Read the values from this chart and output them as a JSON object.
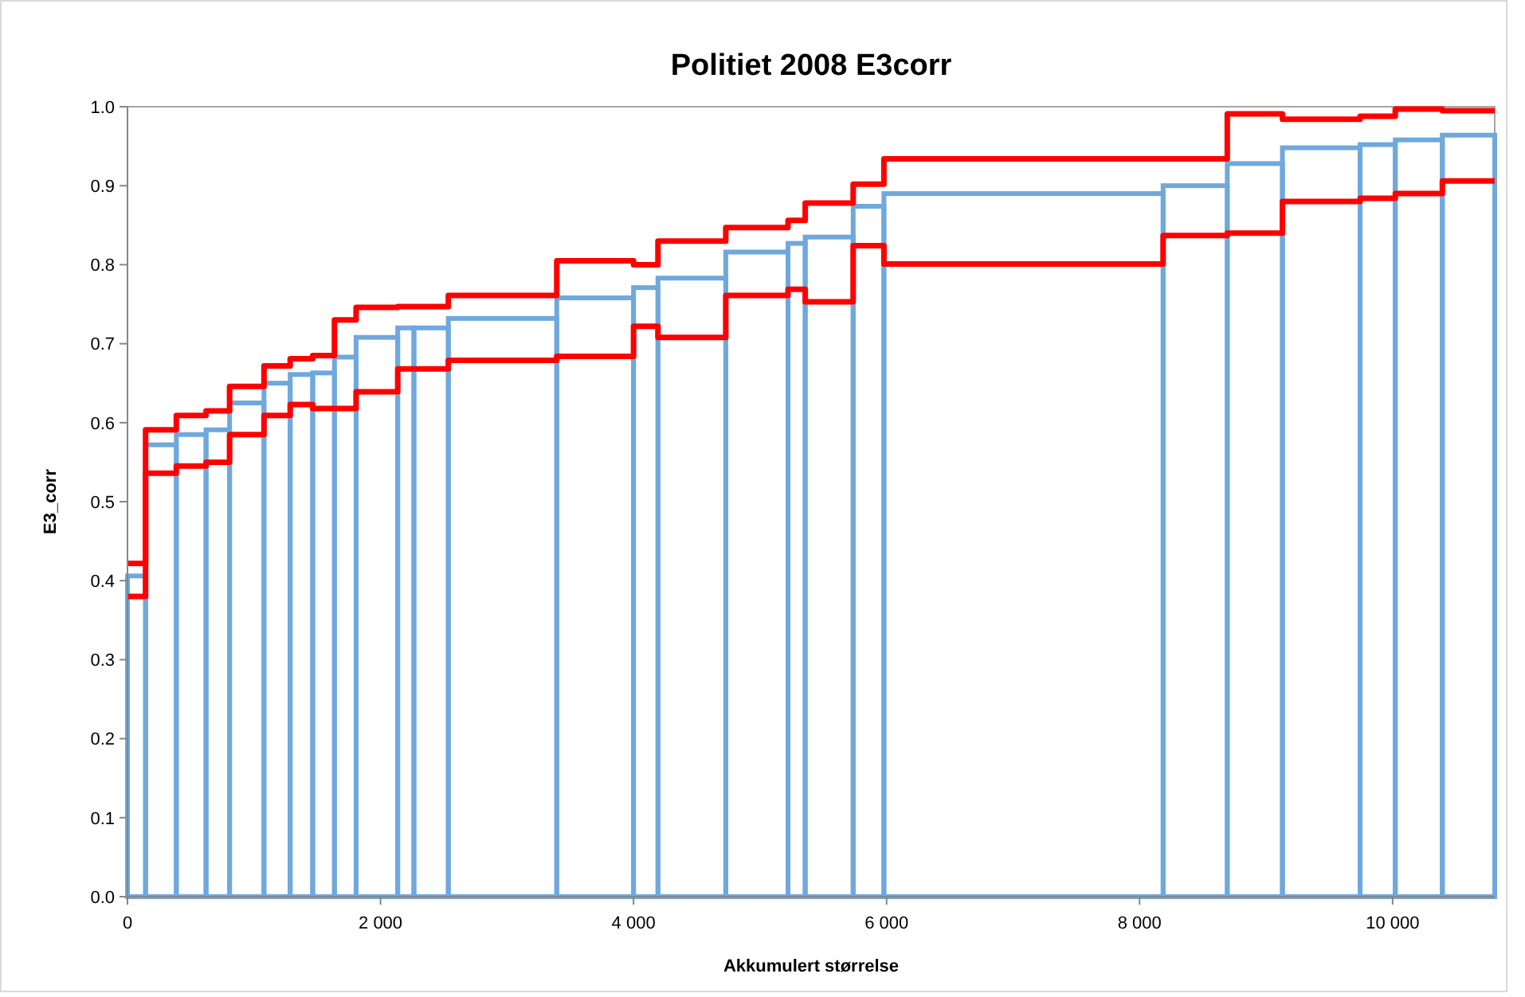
{
  "chart_data": {
    "type": "histogram",
    "title": "Politiet 2008 E3corr",
    "xlabel": "Akkumulert størrelse",
    "ylabel": "E3_corr",
    "bins": [
      0,
      143,
      386,
      621,
      807,
      1079,
      1286,
      1464,
      1636,
      1807,
      2136,
      2264,
      2536,
      3393,
      4000,
      4193,
      4729,
      5221,
      5357,
      5736,
      5979,
      8186,
      8693,
      9129,
      9743,
      10021,
      10393,
      10807
    ],
    "values": [
      0.406,
      0.572,
      0.585,
      0.591,
      0.625,
      0.65,
      0.661,
      0.663,
      0.683,
      0.708,
      0.72,
      0.72,
      0.732,
      0.758,
      0.771,
      0.783,
      0.816,
      0.827,
      0.835,
      0.874,
      0.89,
      0.9,
      0.928,
      0.948,
      0.952,
      0.958,
      0.964
    ],
    "color": "#6fa8dc",
    "series": [
      {
        "type": "step",
        "color": "#ff0000",
        "x": [
          0,
          143,
          386,
          621,
          807,
          1079,
          1286,
          1464,
          1636,
          1807,
          2136,
          2264,
          2536,
          3393,
          4000,
          4193,
          4729,
          5221,
          5357,
          5736,
          5979,
          8186,
          8693,
          9129,
          9743,
          10021,
          10393,
          10807
        ],
        "values": [
          0.422,
          0.591,
          0.609,
          0.615,
          0.646,
          0.672,
          0.681,
          0.685,
          0.73,
          0.746,
          0.747,
          0.747,
          0.761,
          0.805,
          0.8,
          0.83,
          0.847,
          0.856,
          0.878,
          0.902,
          0.934,
          0.934,
          0.991,
          0.984,
          0.988,
          0.997,
          0.995,
          0.995
        ]
      },
      {
        "type": "step",
        "color": "#ff0000",
        "x": [
          0,
          143,
          386,
          621,
          807,
          1079,
          1286,
          1464,
          1636,
          1807,
          2136,
          2264,
          2536,
          3393,
          4000,
          4193,
          4729,
          5221,
          5357,
          5736,
          5979,
          8186,
          8693,
          9129,
          9743,
          10021,
          10393,
          10807
        ],
        "values": [
          0.38,
          0.536,
          0.545,
          0.55,
          0.585,
          0.609,
          0.623,
          0.618,
          0.618,
          0.639,
          0.668,
          0.668,
          0.679,
          0.684,
          0.722,
          0.708,
          0.761,
          0.769,
          0.753,
          0.824,
          0.801,
          0.837,
          0.84,
          0.88,
          0.884,
          0.89,
          0.906,
          0.906
        ]
      }
    ],
    "xlim": [
      0,
      10807
    ],
    "xticks": [
      0,
      {
        "value": 2000,
        "label": "2 000"
      },
      {
        "value": 4000,
        "label": "4 000"
      },
      {
        "value": 6000,
        "label": "6 000"
      },
      {
        "value": 8000,
        "label": "8 000"
      },
      {
        "value": 10000,
        "label": "10 000"
      }
    ],
    "ylim": [
      0,
      1
    ],
    "yticks": [
      {
        "value": 0,
        "label": "0.0"
      },
      {
        "value": 0.1,
        "label": "0.1"
      },
      {
        "value": 0.2,
        "label": "0.2"
      },
      {
        "value": 0.3,
        "label": "0.3"
      },
      {
        "value": 0.4,
        "label": "0.4"
      },
      {
        "value": 0.5,
        "label": "0.5"
      },
      {
        "value": 0.6,
        "label": "0.6"
      },
      {
        "value": 0.7,
        "label": "0.7"
      },
      {
        "value": 0.8,
        "label": "0.8"
      },
      {
        "value": 0.9,
        "label": "0.9"
      },
      {
        "value": 1,
        "label": "1.0"
      }
    ],
    "grid": false,
    "line_style": "solid"
  }
}
